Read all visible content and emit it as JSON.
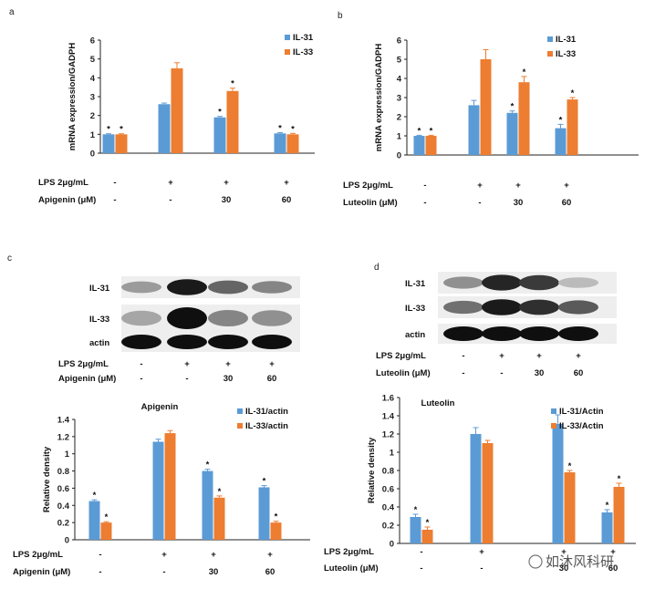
{
  "colors": {
    "il31": "#5b9bd5",
    "il33": "#ed7d31",
    "axis": "#222222"
  },
  "chart_data": [
    {
      "id": "a",
      "type": "bar",
      "panel_letter": "a",
      "title": "",
      "xlabel": "",
      "ylabel": "mRNA expression/GADPH",
      "ylim": [
        0,
        6
      ],
      "yticks": [
        "0",
        "1",
        "2",
        "3",
        "4",
        "5",
        "6"
      ],
      "categories": [
        "1",
        "2",
        "3",
        "4"
      ],
      "series": [
        {
          "name": "IL-31",
          "color": "#5b9bd5",
          "values": [
            1.0,
            2.6,
            1.9,
            1.05
          ],
          "errors": [
            0.03,
            0.06,
            0.05,
            0.04
          ],
          "stars": [
            true,
            false,
            true,
            true
          ]
        },
        {
          "name": "IL-33",
          "color": "#ed7d31",
          "values": [
            1.0,
            4.5,
            3.3,
            1.0
          ],
          "errors": [
            0.03,
            0.3,
            0.15,
            0.05
          ],
          "stars": [
            true,
            false,
            true,
            true
          ]
        }
      ],
      "rows": [
        {
          "label": "LPS 2μg/mL",
          "values": [
            "-",
            "+",
            "+",
            "+"
          ]
        },
        {
          "label": "Apigenin (μM)",
          "values": [
            "-",
            "-",
            "30",
            "60"
          ]
        }
      ],
      "legend_position": "top-right"
    },
    {
      "id": "b",
      "type": "bar",
      "panel_letter": "b",
      "title": "",
      "xlabel": "",
      "ylabel": "mRNA expression/GADPH",
      "ylim": [
        0,
        6
      ],
      "yticks": [
        "0",
        "1",
        "2",
        "3",
        "4",
        "5",
        "6"
      ],
      "categories": [
        "1",
        "2",
        "3",
        "4"
      ],
      "series": [
        {
          "name": "IL-31",
          "color": "#5b9bd5",
          "values": [
            1.0,
            2.6,
            2.2,
            1.4
          ],
          "errors": [
            0.03,
            0.25,
            0.1,
            0.2
          ],
          "stars": [
            true,
            false,
            true,
            true
          ]
        },
        {
          "name": "IL-33",
          "color": "#ed7d31",
          "values": [
            1.0,
            5.0,
            3.8,
            2.9
          ],
          "errors": [
            0.03,
            0.5,
            0.3,
            0.1
          ],
          "stars": [
            true,
            false,
            true,
            true
          ]
        }
      ],
      "rows": [
        {
          "label": "LPS 2μg/mL",
          "values": [
            "-",
            "+",
            "+",
            "+"
          ]
        },
        {
          "label": "Luteolin (μM)",
          "values": [
            "-",
            "-",
            "30",
            "60"
          ]
        }
      ],
      "legend_position": "top-right"
    },
    {
      "id": "c",
      "type": "bar",
      "panel_letter": "",
      "title": "Apigenin",
      "xlabel": "",
      "ylabel": "Relative density",
      "ylim": [
        0,
        1.4
      ],
      "yticks": [
        "0",
        "0.2",
        "0.4",
        "0.6",
        "0.8",
        "1",
        "1.2",
        "1.4"
      ],
      "categories": [
        "1",
        "2",
        "3",
        "4"
      ],
      "series": [
        {
          "name": "IL-31/actin",
          "color": "#5b9bd5",
          "values": [
            0.45,
            1.14,
            0.8,
            0.61
          ],
          "errors": [
            0.015,
            0.03,
            0.02,
            0.02
          ],
          "stars": [
            true,
            false,
            true,
            true
          ]
        },
        {
          "name": "IL-33/actin",
          "color": "#ed7d31",
          "values": [
            0.2,
            1.24,
            0.49,
            0.2
          ],
          "errors": [
            0.01,
            0.03,
            0.02,
            0.015
          ],
          "stars": [
            true,
            false,
            true,
            true
          ]
        }
      ],
      "rows": [
        {
          "label": "LPS 2μg/mL",
          "values": [
            "-",
            "+",
            "+",
            "+"
          ]
        },
        {
          "label": "Apigenin (μM)",
          "values": [
            "-",
            "-",
            "30",
            "60"
          ]
        }
      ],
      "legend_position": "top-right"
    },
    {
      "id": "d",
      "type": "bar",
      "panel_letter": "",
      "title": "Luteolin",
      "xlabel": "",
      "ylabel": "Relative density",
      "ylim": [
        0,
        1.6
      ],
      "yticks": [
        "0",
        "0.2",
        "0.4",
        "0.6",
        "0.8",
        "1",
        "1.2",
        "1.4",
        "1.6"
      ],
      "categories": [
        "1",
        "2",
        "3",
        "4"
      ],
      "series": [
        {
          "name": "IL-31/Actin",
          "color": "#5b9bd5",
          "values": [
            0.29,
            1.2,
            1.31,
            0.34
          ],
          "errors": [
            0.03,
            0.07,
            0.1,
            0.03
          ],
          "stars": [
            true,
            false,
            false,
            true
          ]
        },
        {
          "name": "IL-33/Actin",
          "color": "#ed7d31",
          "values": [
            0.15,
            1.1,
            0.78,
            0.62
          ],
          "errors": [
            0.03,
            0.03,
            0.02,
            0.04
          ],
          "stars": [
            true,
            false,
            true,
            true
          ]
        }
      ],
      "rows": [
        {
          "label": "LPS 2μg/mL",
          "values": [
            "-",
            "+",
            "+",
            "+"
          ]
        },
        {
          "label": "Luteolin (μM)",
          "values": [
            "-",
            "-",
            "30",
            "60"
          ]
        }
      ],
      "legend_position": "top-right"
    }
  ],
  "blots": [
    {
      "id": "c",
      "panel_letter": "c",
      "bands": [
        {
          "label": "IL-31",
          "intensity": [
            0.35,
            0.95,
            0.6,
            0.45
          ]
        },
        {
          "label": "IL-33",
          "intensity": [
            0.3,
            1.0,
            0.45,
            0.4
          ]
        },
        {
          "label": "actin",
          "intensity": [
            1.0,
            1.0,
            1.0,
            1.0
          ]
        }
      ],
      "rows": [
        {
          "label": "LPS 2μg/mL",
          "values": [
            "-",
            "+",
            "+",
            "+"
          ]
        },
        {
          "label": "Apigenin (μM)",
          "values": [
            "-",
            "-",
            "30",
            "60"
          ]
        }
      ]
    },
    {
      "id": "d",
      "panel_letter": "d",
      "bands": [
        {
          "label": "IL-31",
          "intensity": [
            0.4,
            0.9,
            0.8,
            0.2
          ]
        },
        {
          "label": "IL-33",
          "intensity": [
            0.55,
            0.95,
            0.85,
            0.65
          ]
        },
        {
          "label": "actin",
          "intensity": [
            1.0,
            1.0,
            1.0,
            1.0
          ]
        }
      ],
      "rows": [
        {
          "label": "LPS 2μg/mL",
          "values": [
            "-",
            "+",
            "+",
            "+"
          ]
        },
        {
          "label": "Luteolin (μM)",
          "values": [
            "-",
            "-",
            "30",
            "60"
          ]
        }
      ]
    }
  ],
  "star_symbol": "*",
  "watermark": "如沐风科研"
}
